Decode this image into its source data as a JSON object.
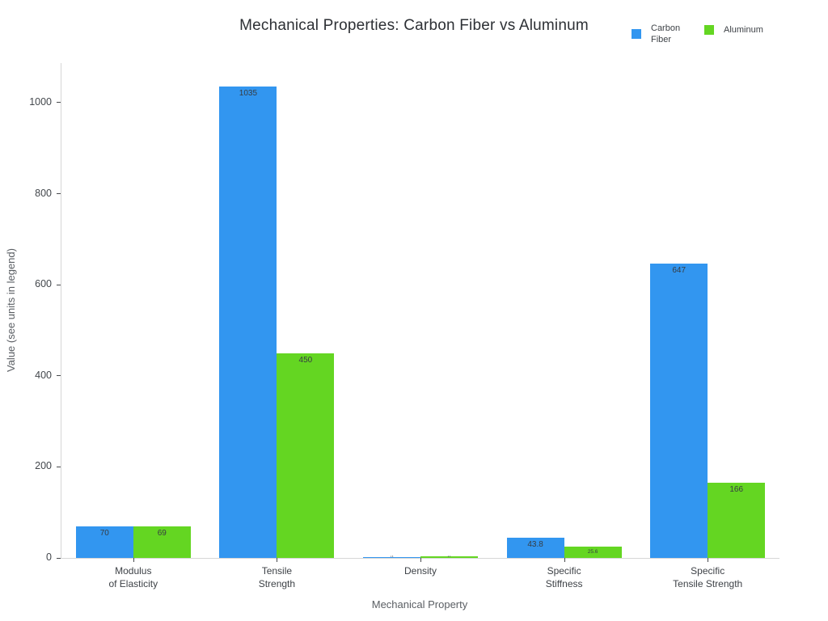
{
  "title": "Mechanical Properties: Carbon Fiber vs Aluminum",
  "legend": {
    "position": "top-right",
    "items": [
      {
        "label": "Carbon Fiber",
        "color": "#3296f0"
      },
      {
        "label": "Aluminum",
        "color": "#64d622"
      }
    ]
  },
  "chart_data": {
    "type": "bar",
    "title": "Mechanical Properties: Carbon Fiber vs Aluminum",
    "xlabel": "Mechanical Property",
    "ylabel": "Value (see units in legend)",
    "categories": [
      "Modulus\nof Elasticity",
      "Tensile\nStrength",
      "Density",
      "Specific\nStiffness",
      "Specific\nTensile Strength"
    ],
    "series": [
      {
        "name": "Carbon Fiber",
        "color": "#3296f0",
        "values": [
          70,
          1035,
          1.6,
          43.8,
          647
        ],
        "labels": [
          "70",
          "1035",
          "1.6",
          "43.8",
          "647"
        ]
      },
      {
        "name": "Aluminum",
        "color": "#64d622",
        "values": [
          69,
          450,
          2.7,
          25.6,
          166
        ],
        "labels": [
          "69",
          "450",
          "2.7",
          "25.6",
          "166"
        ]
      }
    ],
    "yticks": [
      0,
      200,
      400,
      600,
      800,
      1000
    ],
    "ylim": [
      0,
      1087
    ],
    "grid": false,
    "legend_position": "top-right",
    "bar_value_labels": "inside-top"
  }
}
